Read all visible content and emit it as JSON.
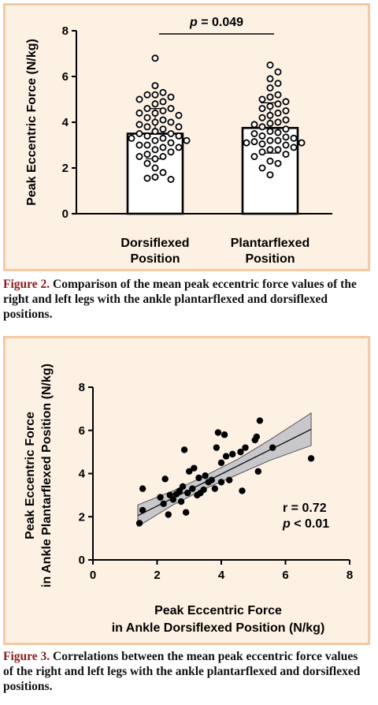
{
  "chart_data": [
    {
      "type": "bar",
      "ylabel": "Peak Eccentric Force (N/kg)",
      "ylim": [
        0,
        8
      ],
      "yticks": [
        0,
        2,
        4,
        6,
        8
      ],
      "categories": [
        {
          "line1": "Dorsiflexed",
          "line2": "Position"
        },
        {
          "line1": "Plantarflexed",
          "line2": "Position"
        }
      ],
      "values": [
        3.5,
        3.75
      ],
      "error_sd": [
        1.1,
        1.1
      ],
      "annotation": {
        "italic": "p",
        "rest": " = 0.049"
      },
      "points": [
        [
          6.8,
          5.6,
          5.3,
          5.2,
          5.2,
          5.1,
          5.0,
          4.9,
          4.8,
          4.6,
          4.6,
          4.5,
          4.4,
          4.4,
          4.3,
          4.2,
          4.1,
          4.0,
          4.0,
          3.9,
          3.8,
          3.8,
          3.7,
          3.6,
          3.5,
          3.5,
          3.4,
          3.4,
          3.3,
          3.3,
          3.2,
          3.2,
          3.1,
          3.0,
          3.0,
          2.9,
          2.9,
          2.8,
          2.7,
          2.6,
          2.5,
          2.5,
          2.4,
          2.2,
          2.0,
          1.8,
          1.6,
          1.55,
          1.5
        ],
        [
          6.5,
          6.2,
          5.9,
          5.7,
          5.5,
          5.2,
          5.1,
          5.0,
          4.9,
          4.8,
          4.7,
          4.6,
          4.5,
          4.4,
          4.3,
          4.2,
          4.1,
          4.0,
          3.95,
          3.9,
          3.8,
          3.7,
          3.6,
          3.55,
          3.5,
          3.4,
          3.35,
          3.3,
          3.2,
          3.2,
          3.15,
          3.1,
          3.1,
          3.05,
          3.0,
          2.9,
          2.8,
          2.8,
          2.7,
          2.6,
          2.5,
          2.3,
          2.2,
          2.0,
          1.7
        ]
      ]
    },
    {
      "type": "scatter",
      "xlabel": "Peak Eccentric Force in Ankle Dorsiflexed Position (N/kg)",
      "xlabel_lines": [
        "Peak Eccentric Force",
        "in Ankle Dorsiflexed Position (N/kg)"
      ],
      "ylabel_lines": [
        "Peak Eccentric Force",
        "in Ankle Plantarflexed Position (N/kg)"
      ],
      "xlim": [
        0,
        8
      ],
      "ylim": [
        0,
        8
      ],
      "xticks": [
        0,
        2,
        4,
        6,
        8
      ],
      "yticks": [
        0,
        2,
        4,
        6,
        8
      ],
      "stat_r": "r = 0.72",
      "stat_p": {
        "italic": "p",
        "rest": " < 0.01"
      },
      "fit": {
        "x": [
          1.4,
          6.8
        ],
        "y": [
          2.05,
          6.05
        ]
      },
      "ci_band": {
        "x": [
          1.4,
          2.5,
          3.5,
          4.5,
          5.5,
          6.8
        ],
        "upper": [
          2.55,
          3.2,
          3.9,
          4.65,
          5.55,
          6.8
        ],
        "lower": [
          1.55,
          2.55,
          3.3,
          3.95,
          4.6,
          5.3
        ]
      },
      "points": [
        {
          "x": 1.45,
          "y": 1.7
        },
        {
          "x": 1.55,
          "y": 2.3
        },
        {
          "x": 1.55,
          "y": 3.3
        },
        {
          "x": 2.1,
          "y": 2.9
        },
        {
          "x": 2.25,
          "y": 3.75
        },
        {
          "x": 2.2,
          "y": 2.6
        },
        {
          "x": 2.35,
          "y": 2.1
        },
        {
          "x": 2.4,
          "y": 3.0
        },
        {
          "x": 2.5,
          "y": 2.8
        },
        {
          "x": 2.6,
          "y": 3.05
        },
        {
          "x": 2.7,
          "y": 3.2
        },
        {
          "x": 2.75,
          "y": 2.7
        },
        {
          "x": 2.8,
          "y": 3.4
        },
        {
          "x": 2.85,
          "y": 5.1
        },
        {
          "x": 2.9,
          "y": 2.2
        },
        {
          "x": 2.95,
          "y": 3.1
        },
        {
          "x": 3.0,
          "y": 4.1
        },
        {
          "x": 3.1,
          "y": 3.3
        },
        {
          "x": 3.15,
          "y": 4.25
        },
        {
          "x": 3.25,
          "y": 3.0
        },
        {
          "x": 3.3,
          "y": 3.8
        },
        {
          "x": 3.35,
          "y": 3.1
        },
        {
          "x": 3.45,
          "y": 3.25
        },
        {
          "x": 3.5,
          "y": 3.9
        },
        {
          "x": 3.6,
          "y": 3.6
        },
        {
          "x": 3.7,
          "y": 3.7
        },
        {
          "x": 3.8,
          "y": 3.3
        },
        {
          "x": 3.85,
          "y": 5.2
        },
        {
          "x": 3.9,
          "y": 5.9
        },
        {
          "x": 4.0,
          "y": 4.5
        },
        {
          "x": 4.0,
          "y": 3.6
        },
        {
          "x": 4.1,
          "y": 5.8
        },
        {
          "x": 4.15,
          "y": 4.8
        },
        {
          "x": 4.25,
          "y": 3.7
        },
        {
          "x": 4.35,
          "y": 4.9
        },
        {
          "x": 4.65,
          "y": 3.2
        },
        {
          "x": 4.6,
          "y": 5.0
        },
        {
          "x": 4.75,
          "y": 5.2
        },
        {
          "x": 5.05,
          "y": 5.55
        },
        {
          "x": 5.1,
          "y": 5.7
        },
        {
          "x": 5.2,
          "y": 6.45
        },
        {
          "x": 5.15,
          "y": 4.1
        },
        {
          "x": 5.6,
          "y": 5.2
        },
        {
          "x": 6.8,
          "y": 4.7
        }
      ]
    }
  ],
  "captions": [
    {
      "label": "Figure 2.",
      "text": " Comparison of the mean peak eccentric force values of the right and left legs with the ankle plantarflexed and dorsiflexed positions."
    },
    {
      "label": "Figure 3.",
      "text": " Correlations between the mean peak eccentric force values of the right and left legs with the ankle plantarflexed and dorsiflexed positions."
    }
  ],
  "colors": {
    "panel_bg": "#fdf1e4",
    "panel_border": "#f3c9a1",
    "caption_label": "#8b1a1a",
    "ci_band": "#c8c8cc"
  }
}
